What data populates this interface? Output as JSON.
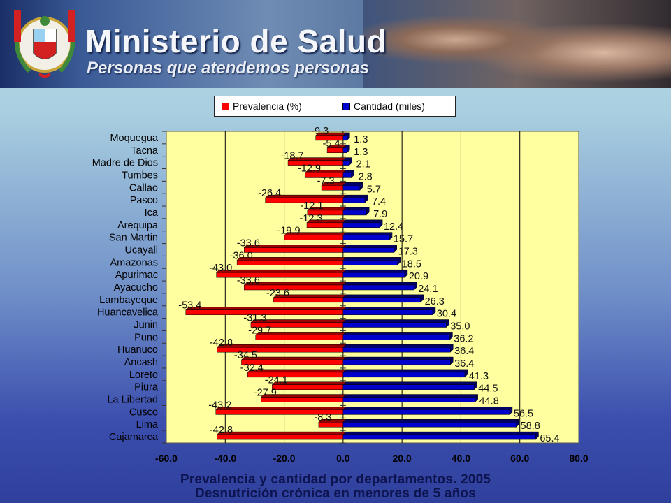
{
  "header": {
    "title": "Ministerio de Salud",
    "subtitle": "Personas que atendemos personas"
  },
  "colors": {
    "prevalencia": "#ff0000",
    "cantidad": "#0000cc",
    "plot_bg": "#ffffa0"
  },
  "chart_data": {
    "type": "bar",
    "orientation": "horizontal",
    "title": "Prevalencia y cantidad por departamentos. 2005",
    "subtitle": "Desnutrición crónica en menores de 5 años",
    "categories": [
      "Moquegua",
      "Tacna",
      "Madre de Dios",
      "Tumbes",
      "Callao",
      "Pasco",
      "Ica",
      "Arequipa",
      "San Martin",
      "Ucayali",
      "Amazonas",
      "Apurimac",
      "Ayacucho",
      "Lambayeque",
      "Huancavelica",
      "Junin",
      "Puno",
      "Huanuco",
      "Ancash",
      "Loreto",
      "Piura",
      "La Libertad",
      "Cusco",
      "Lima",
      "Cajamarca"
    ],
    "series": [
      {
        "name": "Prevalencia (%)",
        "values": [
          -9.3,
          -5.4,
          -18.7,
          -12.9,
          -7.3,
          -26.4,
          -12.1,
          -12.3,
          -19.9,
          -33.6,
          -36.0,
          -43.0,
          -33.6,
          -23.6,
          -53.4,
          -31.3,
          -29.7,
          -42.8,
          -34.5,
          -32.4,
          -24.1,
          -27.9,
          -43.2,
          -8.3,
          -42.8
        ]
      },
      {
        "name": "Cantidad (miles)",
        "values": [
          1.3,
          1.3,
          2.1,
          2.8,
          5.7,
          7.4,
          7.9,
          12.4,
          15.7,
          17.3,
          18.5,
          20.9,
          24.1,
          26.3,
          30.4,
          35.0,
          36.2,
          36.4,
          36.4,
          41.3,
          44.5,
          44.8,
          56.5,
          58.8,
          65.4
        ]
      }
    ],
    "xlim": [
      -60,
      80
    ],
    "xticks": [
      "-60.0",
      "-40.0",
      "-20.0",
      "0.0",
      "20.0",
      "40.0",
      "60.0",
      "80.0"
    ],
    "legend_position": "top",
    "grid": true
  }
}
